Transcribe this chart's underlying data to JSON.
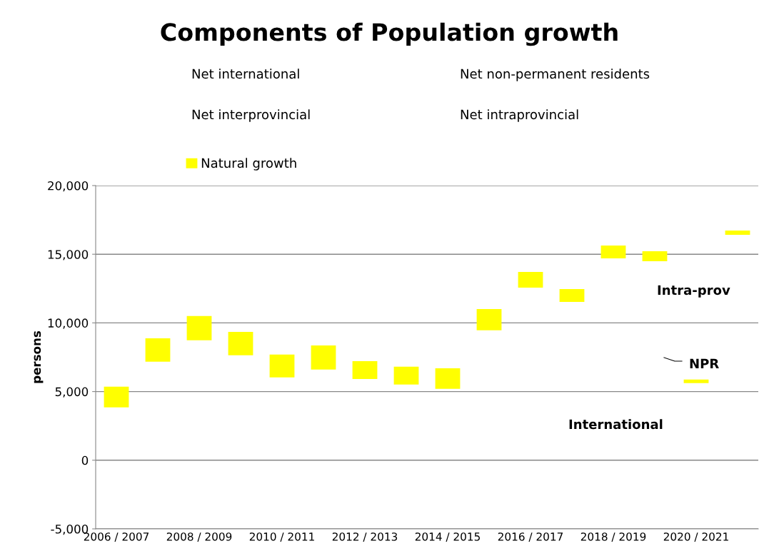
{
  "chart_data": {
    "type": "bar",
    "title": "Components of Population growth",
    "ylabel": "persons",
    "categories": [
      "2006 / 2007",
      null,
      "2008 / 2009",
      null,
      "2010 / 2011",
      null,
      "2012 / 2013",
      null,
      "2014 / 2015",
      null,
      "2016 / 2017",
      null,
      "2018 / 2019",
      null,
      "2020 / 2021",
      null
    ],
    "series": [
      {
        "name": "Natural growth",
        "color": "#ffff00",
        "values": [
          1500,
          1710,
          1770,
          1710,
          1660,
          1760,
          1300,
          1300,
          1500,
          1550,
          1140,
          940,
          940,
          730,
          260,
          310
        ],
        "base": [
          3850,
          7170,
          8730,
          7640,
          6030,
          6600,
          5920,
          5510,
          5200,
          9460,
          12570,
          11530,
          14700,
          14490,
          5610,
          16420
        ]
      }
    ],
    "ylim": [
      -5000,
      20000
    ],
    "yticks": [
      {
        "value": -5000,
        "label": "-5,000"
      },
      0,
      {
        "value": 5000,
        "label": "5,000"
      },
      {
        "value": 10000,
        "label": "10,000"
      },
      {
        "value": 15000,
        "label": "15,000"
      },
      {
        "value": 20000,
        "label": "20,000"
      }
    ],
    "grid": "y",
    "legend": "top left",
    "annotations": [
      "Net international",
      "Net non-permanent residents",
      "Net interprovincial",
      "Net intraprovincial",
      "Intra-prov",
      "NPR",
      "International"
    ]
  }
}
